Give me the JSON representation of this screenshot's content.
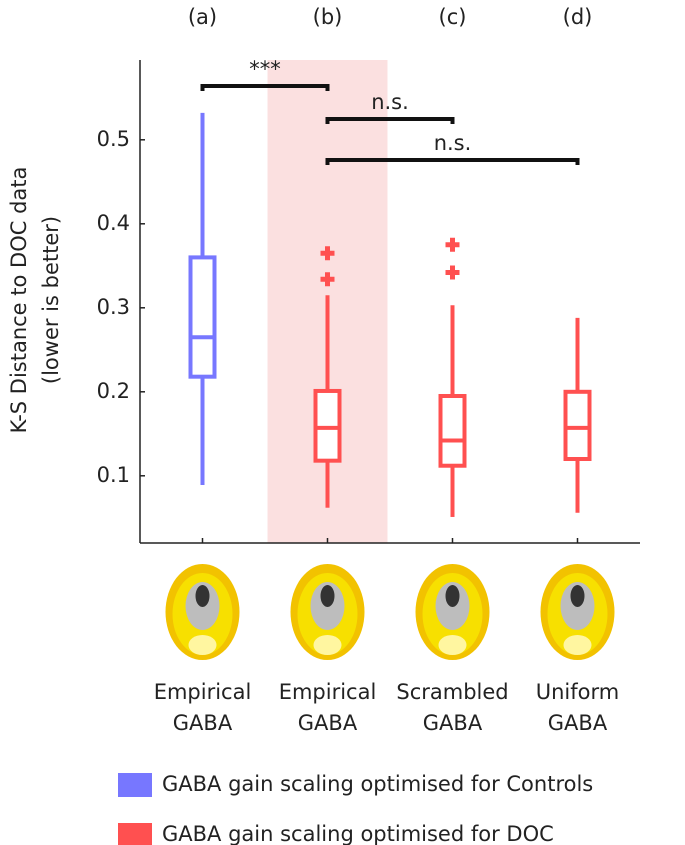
{
  "chart_data": {
    "type": "box",
    "categories": [
      "(a)",
      "(b)",
      "(c)",
      "(d)"
    ],
    "sublabels": [
      [
        "Empirical",
        "GABA"
      ],
      [
        "Empirical",
        "GABA"
      ],
      [
        "Scrambled",
        "GABA"
      ],
      [
        "Uniform",
        "GABA"
      ]
    ],
    "ylabel": [
      "K-S Distance to DOC data",
      "(lower is better)"
    ],
    "ylim": [
      0.02,
      0.595
    ],
    "yticks": [
      0.1,
      0.2,
      0.3,
      0.4,
      0.5
    ],
    "highlight_category": "(b)",
    "highlight_color": "#fbe0e0",
    "series": [
      {
        "name": "GABA gain scaling optimised for Controls",
        "color": "#7777ff",
        "values": [
          {
            "min": 0.089,
            "q1": 0.218,
            "median": 0.265,
            "q3": 0.36,
            "max": 0.532,
            "outliers": []
          },
          null,
          null,
          null
        ]
      },
      {
        "name": "GABA gain scaling optimised for DOC",
        "color": "#ff5050",
        "values": [
          null,
          {
            "min": 0.062,
            "q1": 0.118,
            "median": 0.157,
            "q3": 0.201,
            "max": 0.315,
            "outliers": [
              0.365,
              0.334
            ]
          },
          {
            "min": 0.051,
            "q1": 0.112,
            "median": 0.142,
            "q3": 0.195,
            "max": 0.303,
            "outliers": [
              0.375,
              0.342
            ]
          },
          {
            "min": 0.056,
            "q1": 0.12,
            "median": 0.157,
            "q3": 0.2,
            "max": 0.288,
            "outliers": []
          }
        ]
      }
    ],
    "annotations": [
      {
        "between": [
          "(a)",
          "(b)"
        ],
        "label": "***"
      },
      {
        "between": [
          "(b)",
          "(c)"
        ],
        "label": "n.s."
      },
      {
        "between": [
          "(b)",
          "(d)"
        ],
        "label": "n.s."
      }
    ]
  }
}
